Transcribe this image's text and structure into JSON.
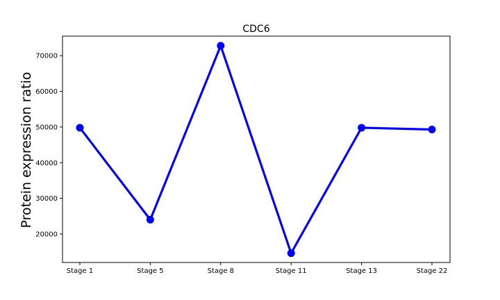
{
  "chart_data": {
    "type": "line",
    "title": "CDC6",
    "xlabel": "",
    "ylabel": "Protein expression ratio",
    "categories": [
      "Stage 1",
      "Stage 5",
      "Stage 8",
      "Stage 11",
      "Stage 13",
      "Stage 22"
    ],
    "series": [
      {
        "values": [
          49800,
          24000,
          72800,
          14600,
          49800,
          49300
        ],
        "color": "#0000ff"
      }
    ],
    "ylim": [
      12000,
      75500
    ],
    "yticks": [
      20000,
      30000,
      40000,
      50000,
      60000,
      70000
    ],
    "ytick_labels": [
      "20000",
      "30000",
      "40000",
      "50000",
      "60000",
      "70000"
    ],
    "grid": false,
    "legend": "none"
  }
}
